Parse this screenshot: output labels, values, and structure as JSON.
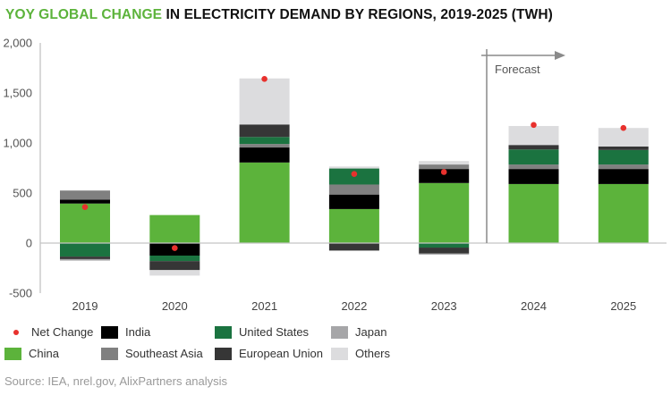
{
  "title": {
    "highlight": "YOY GLOBAL CHANGE",
    "rest": " IN ELECTRICITY DEMAND BY REGIONS, 2019-2025 (TWH)"
  },
  "source": "Source: IEA, nrel.gov, AlixPartners analysis",
  "chart_data": {
    "type": "bar",
    "stacked": true,
    "title": "YOY GLOBAL CHANGE IN ELECTRICITY DEMAND BY REGIONS, 2019-2025 (TWH)",
    "xlabel": "",
    "ylabel": "",
    "ylim": [
      -500,
      2000
    ],
    "yticks": [
      2000,
      1500,
      1000,
      500,
      0,
      -500
    ],
    "ytick_labels": [
      "2,000",
      "1,500",
      "1,000",
      "500",
      "0",
      "-500"
    ],
    "categories": [
      "2019",
      "2020",
      "2021",
      "2022",
      "2023",
      "2024",
      "2025"
    ],
    "series": [
      {
        "name": "China",
        "color": "#5cb33b",
        "values": [
          395,
          280,
          805,
          340,
          600,
          590,
          590
        ]
      },
      {
        "name": "India",
        "color": "#000000",
        "values": [
          40,
          -125,
          150,
          145,
          140,
          150,
          150
        ]
      },
      {
        "name": "Southeast Asia",
        "color": "#808080",
        "values": [
          90,
          0,
          35,
          100,
          45,
          45,
          45
        ]
      },
      {
        "name": "United States",
        "color": "#1b7340",
        "values": [
          -135,
          -55,
          70,
          160,
          -45,
          150,
          145
        ]
      },
      {
        "name": "European Union",
        "color": "#363636",
        "values": [
          -25,
          -90,
          125,
          -75,
          -60,
          45,
          35
        ]
      },
      {
        "name": "Japan",
        "color": "#a6a6a8",
        "values": [
          -15,
          0,
          0,
          0,
          -10,
          0,
          0
        ]
      },
      {
        "name": "Others",
        "color": "#dcdcde",
        "values": [
          0,
          -55,
          460,
          20,
          35,
          190,
          185
        ]
      }
    ],
    "net_change": {
      "name": "Net Change",
      "color": "#e8312d",
      "values": [
        360,
        -50,
        1640,
        690,
        710,
        1180,
        1150
      ]
    },
    "annotations": [
      {
        "text": "Forecast",
        "applies_to": [
          "2024",
          "2025"
        ]
      }
    ],
    "grid": false,
    "legend_position": "bottom"
  },
  "legend": {
    "items": [
      {
        "label": "Net Change",
        "kind": "dot",
        "color": "#e8312d"
      },
      {
        "label": "India",
        "kind": "box",
        "color": "#000000"
      },
      {
        "label": "United States",
        "kind": "box",
        "color": "#1b7340"
      },
      {
        "label": "Japan",
        "kind": "box",
        "color": "#a6a6a8"
      },
      {
        "label": "China",
        "kind": "box",
        "color": "#5cb33b"
      },
      {
        "label": "Southeast Asia",
        "kind": "box",
        "color": "#808080"
      },
      {
        "label": "European Union",
        "kind": "box",
        "color": "#363636"
      },
      {
        "label": "Others",
        "kind": "box",
        "color": "#dcdcde"
      }
    ]
  }
}
